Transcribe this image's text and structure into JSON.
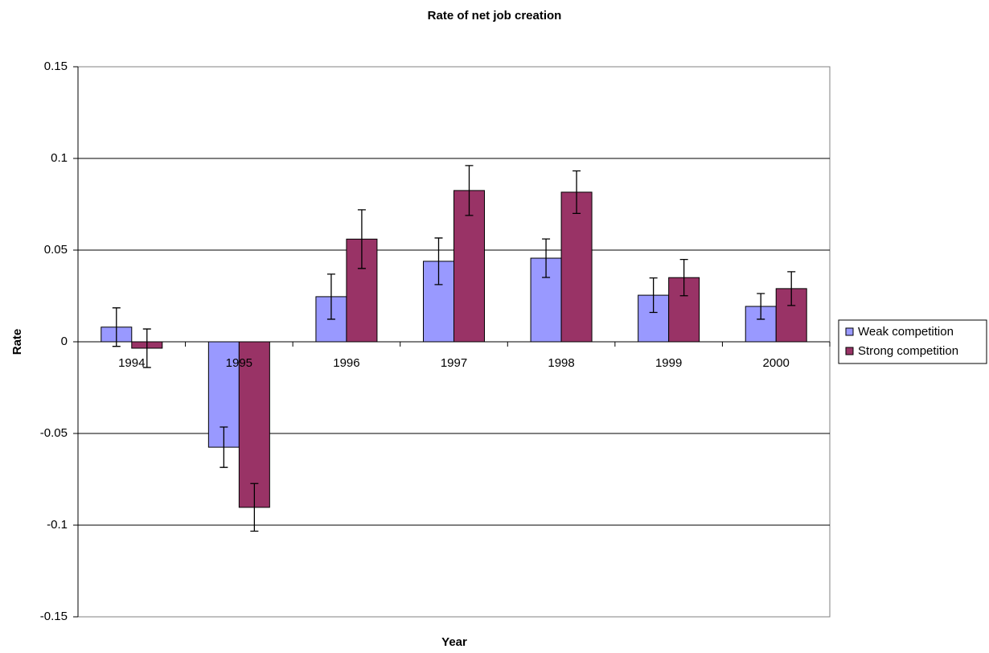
{
  "chart_data": {
    "type": "bar",
    "title": "Rate of net job creation",
    "x_label": "Year",
    "y_label": "Rate",
    "categories": [
      "1994",
      "1995",
      "1996",
      "1997",
      "1998",
      "1999",
      "2000"
    ],
    "series": [
      {
        "name": "Weak competition",
        "color": "#9999ff",
        "values": [
          0.008,
          -0.0575,
          0.0246,
          0.0439,
          0.0456,
          0.0254,
          0.0193
        ],
        "errors": [
          0.0105,
          0.011,
          0.0123,
          0.0127,
          0.0105,
          0.0094,
          0.007
        ]
      },
      {
        "name": "Strong competition",
        "color": "#993366",
        "values": [
          -0.0035,
          -0.0903,
          0.056,
          0.0825,
          0.0816,
          0.035,
          0.029
        ],
        "errors": [
          0.0105,
          0.013,
          0.016,
          0.0136,
          0.0116,
          0.0099,
          0.0092
        ]
      }
    ],
    "ylim": [
      -0.15,
      0.15
    ],
    "yticks": [
      -0.15,
      -0.1,
      -0.05,
      0,
      0.05,
      0.1,
      0.15
    ],
    "grid": true,
    "legend": "right"
  }
}
